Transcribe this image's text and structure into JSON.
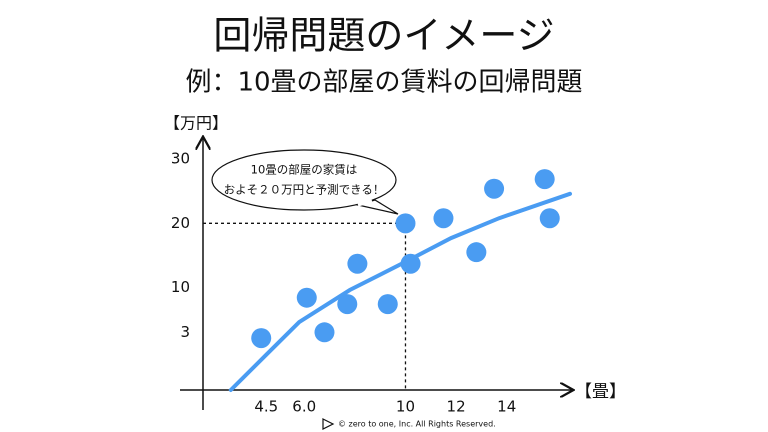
{
  "chart_data": {
    "type": "scatter",
    "title": "回帰問題のイメージ",
    "subtitle": "例：10畳の部屋の賃料の回帰問題",
    "y_label": "【万円】",
    "x_label": "【畳】",
    "annotation": [
      "10畳の部屋の家賃は",
      "およそ２０万円と予測できる！"
    ],
    "footer": "©  zero to one, Inc. All Rights Reserved.",
    "xlim": [
      2,
      16.5
    ],
    "ylim": [
      -6,
      33
    ],
    "xticks": [
      4.5,
      {
        "value": 6,
        "label": "6.0"
      },
      10,
      12,
      14
    ],
    "yticks": [
      3,
      10,
      20,
      30
    ],
    "series": [
      {
        "x": [
          4.3,
          6.1,
          6.8,
          7.7,
          8.1,
          9.3,
          10,
          10.2,
          11.5,
          12.8,
          13.5,
          15.5,
          15.7
        ],
        "values": [
          2.1,
          8.4,
          3.0,
          7.4,
          13.7,
          7.4,
          20,
          13.7,
          20.8,
          15.5,
          25.4,
          26.9,
          20.8
        ],
        "color": "#4a9cf2"
      }
    ],
    "trend": {
      "x": [
        3.1,
        4.5,
        5.8,
        7.8,
        10,
        11.8,
        13.7,
        16.5
      ],
      "values": [
        -6,
        -0.5,
        4.6,
        9.6,
        14,
        17.7,
        20.8,
        24.6
      ],
      "color": "#4a9cf2"
    }
  }
}
